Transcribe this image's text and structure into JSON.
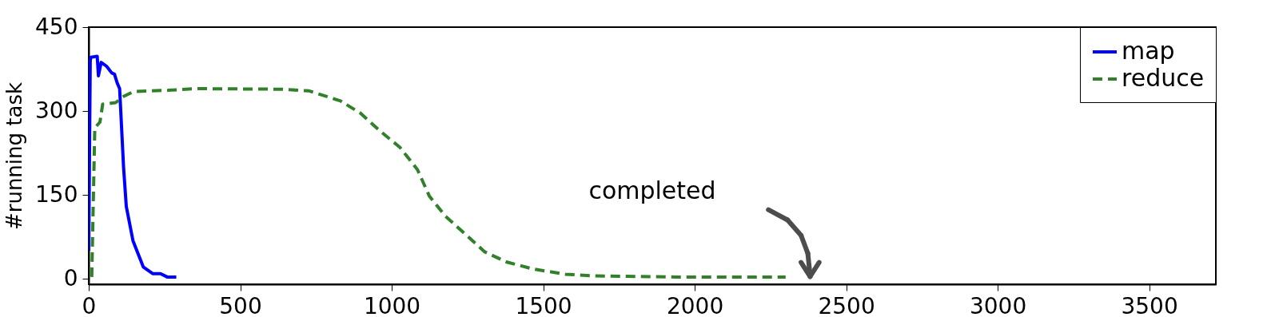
{
  "chart_data": {
    "type": "line",
    "ylabel": "#running task",
    "xlim": [
      0,
      3720
    ],
    "ylim": [
      -10,
      450
    ],
    "xticks": [
      0,
      500,
      1000,
      1500,
      2000,
      2500,
      3000,
      3500
    ],
    "yticks": [
      0,
      150,
      300,
      450
    ],
    "grid": false,
    "legend": "top right",
    "annotations": [
      "completed"
    ],
    "series": [
      {
        "name": "map",
        "color": "#0000ff",
        "line_style": "solid",
        "x": [
          0,
          5,
          7,
          28,
          32,
          41,
          59,
          76,
          85,
          94,
          102,
          115,
          124,
          146,
          180,
          211,
          237,
          259,
          289
        ],
        "values": [
          50,
          390,
          396,
          398,
          363,
          387,
          380,
          368,
          366,
          350,
          340,
          199,
          129,
          68,
          21,
          9,
          9,
          3,
          3
        ]
      },
      {
        "name": "reduce",
        "color": "#31802a",
        "line_style": "dashed",
        "x": [
          10,
          20,
          37,
          46,
          89,
          115,
          149,
          262,
          349,
          636,
          727,
          831,
          897,
          962,
          1027,
          1085,
          1124,
          1177,
          1242,
          1307,
          1378,
          1469,
          1573,
          1665,
          1809,
          1938,
          2069,
          2300
        ],
        "values": [
          3,
          270,
          280,
          312,
          315,
          326,
          335,
          337,
          340,
          339,
          336,
          318,
          296,
          264,
          235,
          195,
          148,
          112,
          80,
          48,
          30,
          17,
          8,
          5,
          4,
          3,
          3,
          3
        ]
      }
    ]
  }
}
